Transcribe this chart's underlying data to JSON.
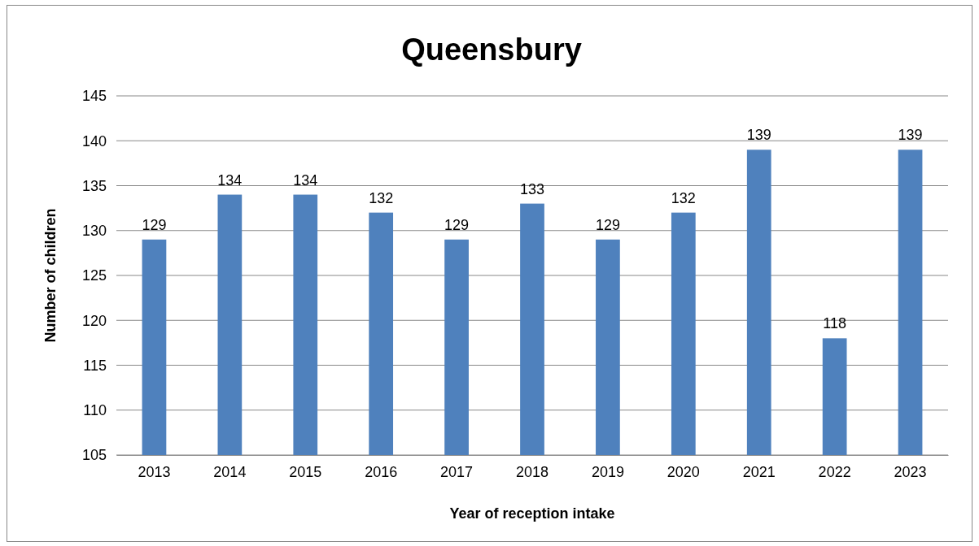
{
  "chart_data": {
    "type": "bar",
    "title": "Queensbury",
    "xlabel": "Year of reception intake",
    "ylabel": "Number of children",
    "categories": [
      "2013",
      "2014",
      "2015",
      "2016",
      "2017",
      "2018",
      "2019",
      "2020",
      "2021",
      "2022",
      "2023"
    ],
    "values": [
      129,
      134,
      134,
      132,
      129,
      133,
      129,
      132,
      139,
      118,
      139
    ],
    "color": "#4f81bd",
    "ylim": [
      105,
      145
    ],
    "yticks": [
      105,
      110,
      115,
      120,
      125,
      130,
      135,
      140,
      145
    ],
    "grid": "y",
    "data_labels": true
  }
}
